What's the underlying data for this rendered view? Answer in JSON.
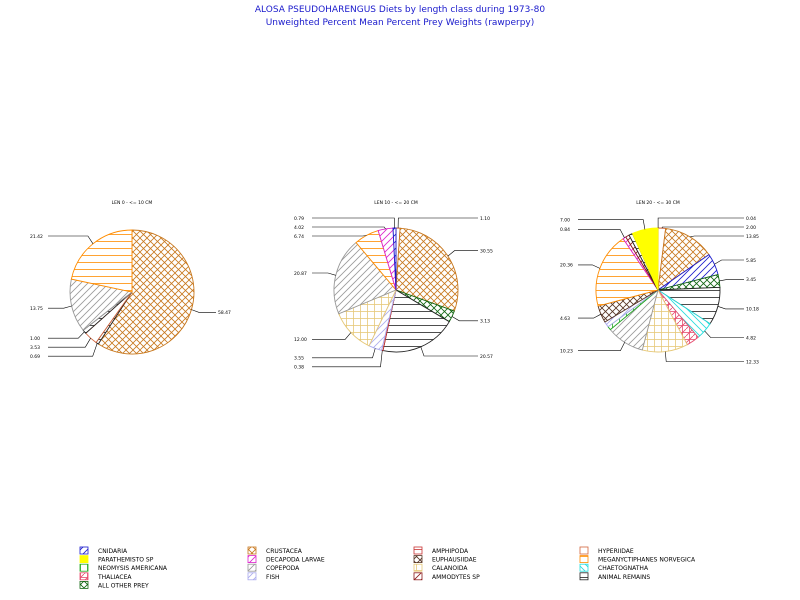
{
  "chart_data": {
    "type": "pie",
    "title": "ALOSA PSEUDOHARENGUS Diets by length class during 1973-80",
    "subtitle": "Unweighted Percent Mean Percent Prey  Weights (rawperpy)",
    "colors": {
      "title": "#1a1acc",
      "outline": "#000000",
      "CNIDARIA": "#1a1acc",
      "PARATHEMISTO SP": "#ffff00",
      "NEOMYSIS AMERICANA": "#22aa22",
      "THALIACEA": "#e64b6e",
      "ALL OTHER PREY": "#116611",
      "CRUSTACEA": "#c8781e",
      "DECAPODA LARVAE": "#dd22cc",
      "COPEPODA": "#999999",
      "FISH": "#aaaaee",
      "AMPHIPODA": "#c83232",
      "EUPHAUSIIDAE": "#553322",
      "CALANOIDA": "#e6c878",
      "AMMODYTES SP": "#8b1a1a",
      "HYPERIIDAE": "#d2643c",
      "MEGANYCTIPHANES NORVEGICA": "#ff8c00",
      "CHAETOGNATHA": "#22dddd",
      "ANIMAL REMAINS": "#222222"
    },
    "legend": {
      "placement": "bottom",
      "entries": [
        {
          "label": "CNIDARIA",
          "pattern": "diag-up"
        },
        {
          "label": "PARATHEMISTO SP",
          "pattern": "solid"
        },
        {
          "label": "NEOMYSIS AMERICANA",
          "pattern": "vert"
        },
        {
          "label": "THALIACEA",
          "pattern": "cross"
        },
        {
          "label": "ALL OTHER PREY",
          "pattern": "diag-cross"
        },
        {
          "label": "CRUSTACEA",
          "pattern": "diag-cross"
        },
        {
          "label": "DECAPODA LARVAE",
          "pattern": "diag-up"
        },
        {
          "label": "COPEPODA",
          "pattern": "diag-up"
        },
        {
          "label": "FISH",
          "pattern": "diag-up"
        },
        {
          "label": "AMPHIPODA",
          "pattern": "horiz"
        },
        {
          "label": "EUPHAUSIIDAE",
          "pattern": "diag-cross"
        },
        {
          "label": "CALANOIDA",
          "pattern": "grid"
        },
        {
          "label": "AMMODYTES SP",
          "pattern": "diag-up"
        },
        {
          "label": "HYPERIIDAE",
          "pattern": "empty"
        },
        {
          "label": "MEGANYCTIPHANES NORVEGICA",
          "pattern": "horiz"
        },
        {
          "label": "CHAETOGNATHA",
          "pattern": "diag-down"
        },
        {
          "label": "ANIMAL REMAINS",
          "pattern": "horiz"
        }
      ]
    },
    "pies": [
      {
        "title": "LEN 0 - <= 10 CM",
        "slices": [
          {
            "category": "CRUSTACEA",
            "value": 58.47,
            "label": "58.47"
          },
          {
            "category": "ANIMAL REMAINS",
            "value": 0.69,
            "label": "0.69"
          },
          {
            "category": "HYPERIIDAE",
            "value": 3.53,
            "label": "3.53"
          },
          {
            "category": "ANIMAL REMAINS",
            "value": 1.0,
            "label": "1.00"
          },
          {
            "category": "COPEPODA",
            "value": 13.75,
            "label": "13.75"
          },
          {
            "category": "MEGANYCTIPHANES NORVEGICA",
            "value": 21.42,
            "label": "21.42"
          }
        ]
      },
      {
        "title": "LEN 10 - <= 20 CM",
        "slices": [
          {
            "category": "HYPERIIDAE",
            "value": 1.1,
            "label": "1.10"
          },
          {
            "category": "CRUSTACEA",
            "value": 30.55,
            "label": "30.55"
          },
          {
            "category": "ALL OTHER PREY",
            "value": 3.13,
            "label": "3.13"
          },
          {
            "category": "ANIMAL REMAINS",
            "value": 20.57,
            "label": "20.57"
          },
          {
            "category": "AMPHIPODA",
            "value": 0.38,
            "label": "0.38"
          },
          {
            "category": "FISH",
            "value": 3.55,
            "label": "3.55"
          },
          {
            "category": "CALANOIDA",
            "value": 12.0,
            "label": "12.00"
          },
          {
            "category": "COPEPODA",
            "value": 20.87,
            "label": "20.87"
          },
          {
            "category": "MEGANYCTIPHANES NORVEGICA",
            "value": 6.74,
            "label": "6.74"
          },
          {
            "category": "DECAPODA LARVAE",
            "value": 4.02,
            "label": "4.02"
          },
          {
            "category": "CNIDARIA",
            "value": 0.79,
            "label": "0.79"
          }
        ]
      },
      {
        "title": "LEN 20 - <= 30 CM",
        "slices": [
          {
            "category": "AMPHIPODA",
            "value": 0.04,
            "label": "0.04"
          },
          {
            "category": "HYPERIIDAE",
            "value": 2.0,
            "label": "2.00"
          },
          {
            "category": "CRUSTACEA",
            "value": 13.85,
            "label": "13.85"
          },
          {
            "category": "CNIDARIA",
            "value": 5.85,
            "label": "5.85"
          },
          {
            "category": "ALL OTHER PREY",
            "value": 3.45,
            "label": "3.45"
          },
          {
            "category": "ANIMAL REMAINS",
            "value": 10.18,
            "label": "10.18"
          },
          {
            "category": "CHAETOGNATHA",
            "value": 4.82,
            "label": "4.82"
          },
          {
            "category": "THALIACEA",
            "value": 3.5,
            "label": ""
          },
          {
            "category": "CALANOIDA",
            "value": 12.33,
            "label": "12.33"
          },
          {
            "category": "COPEPODA",
            "value": 10.23,
            "label": "10.23"
          },
          {
            "category": "NEOMYSIS AMERICANA",
            "value": 1.0,
            "label": ""
          },
          {
            "category": "FISH",
            "value": 1.5,
            "label": ""
          },
          {
            "category": "EUPHAUSIIDAE",
            "value": 4.63,
            "label": "4.63"
          },
          {
            "category": "MEGANYCTIPHANES NORVEGICA",
            "value": 20.36,
            "label": "20.36"
          },
          {
            "category": "DECAPODA LARVAE",
            "value": 0.84,
            "label": "0.84"
          },
          {
            "category": "AMMODYTES SP",
            "value": 1.0,
            "label": ""
          },
          {
            "category": "ANIMAL REMAINS",
            "value": 1.0,
            "label": ""
          },
          {
            "category": "PARATHEMISTO SP",
            "value": 7.0,
            "label": "7.00"
          }
        ]
      }
    ]
  }
}
